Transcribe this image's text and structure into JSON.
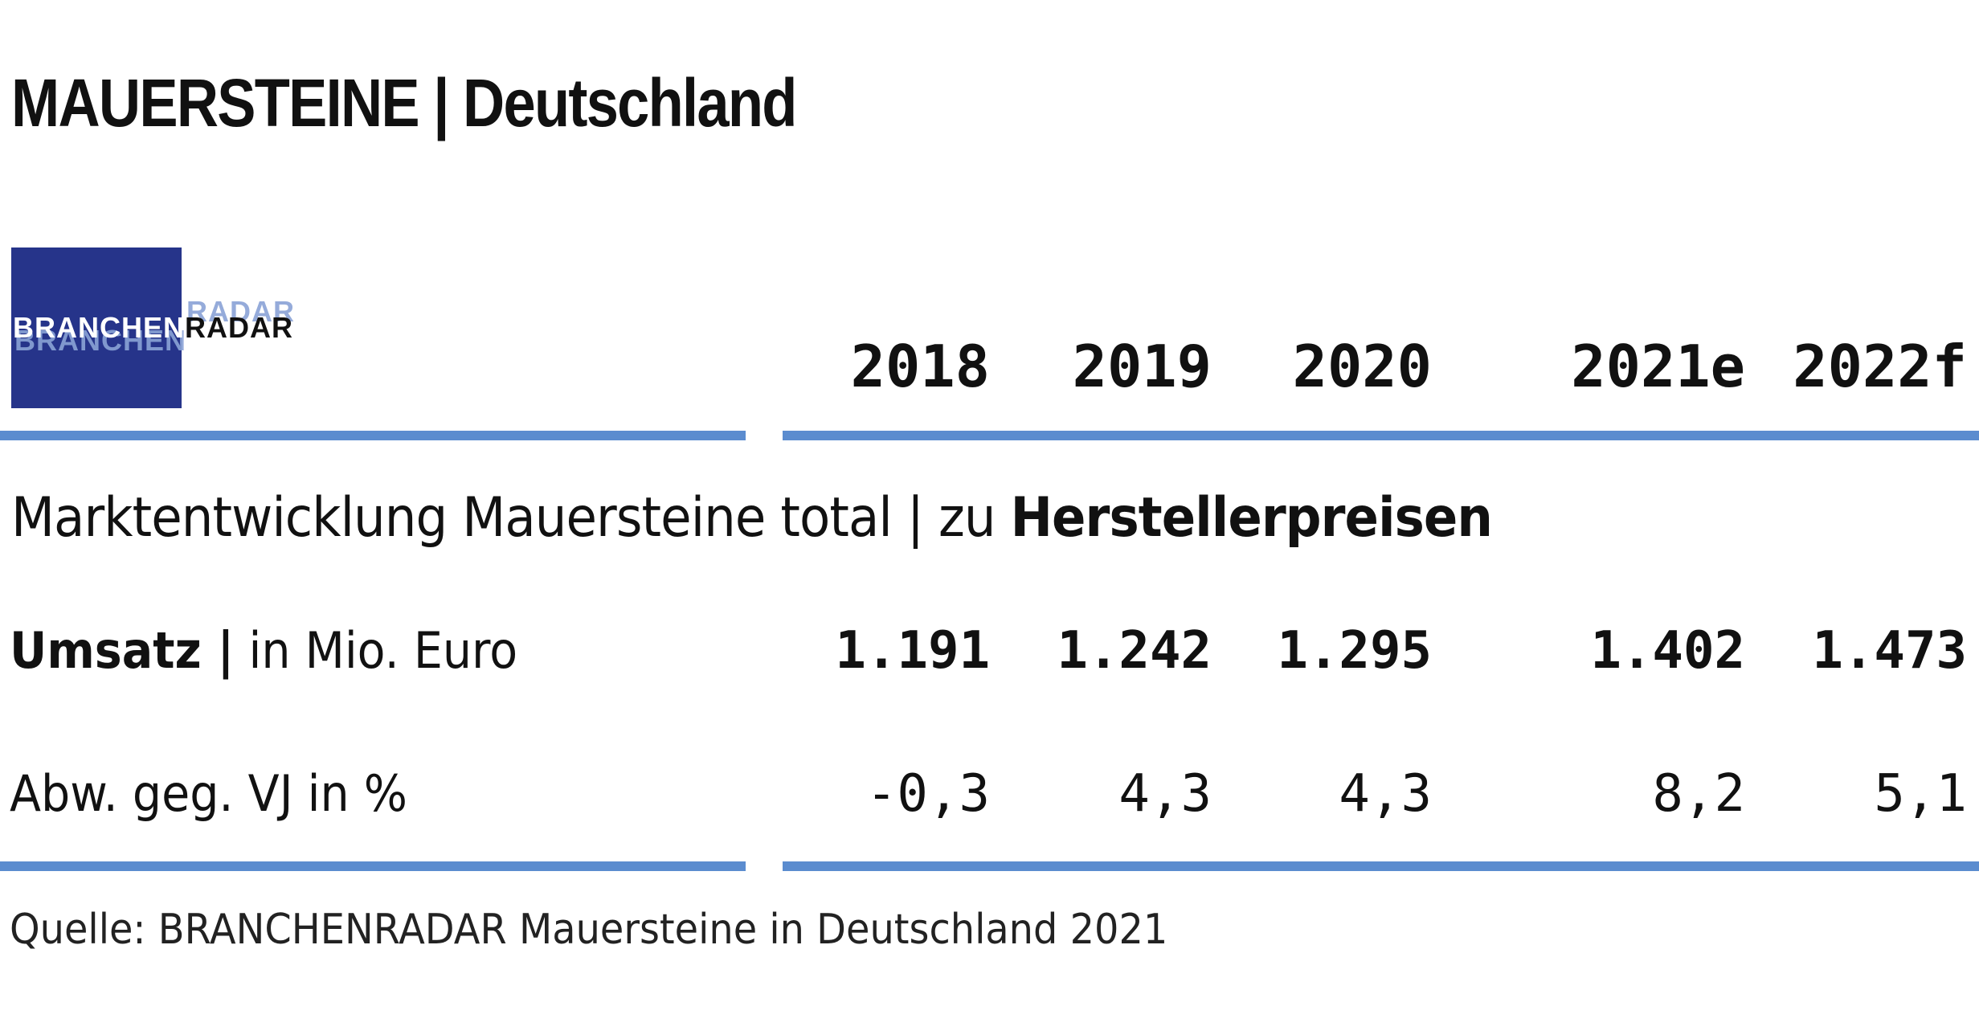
{
  "title": "MAUERSTEINE | Deutschland",
  "logo": {
    "text_part1": "BRANCHEN",
    "text_part2": "RADAR",
    "box_color": "#26348a"
  },
  "accent_color": "#5b8ccf",
  "chart_data": {
    "type": "table",
    "title": "MAUERSTEINE | Deutschland",
    "subtitle_regular": "Marktentwicklung Mauersteine total | zu ",
    "subtitle_bold": "Herstellerpreisen",
    "columns": [
      "2018",
      "2019",
      "2020",
      "2021e",
      "2022f"
    ],
    "rows": [
      {
        "label_bold": "Umsatz |",
        "label_regular": " in Mio. Euro",
        "values": [
          "1.191",
          "1.242",
          "1.295",
          "1.402",
          "1.473"
        ]
      },
      {
        "label_bold": "",
        "label_regular": "Abw. geg. VJ in %",
        "values": [
          "-0,3",
          "4,3",
          "4,3",
          "8,2",
          "5,1"
        ]
      }
    ],
    "source": "Quelle: BRANCHENRADAR Mauersteine in Deutschland 2021"
  }
}
